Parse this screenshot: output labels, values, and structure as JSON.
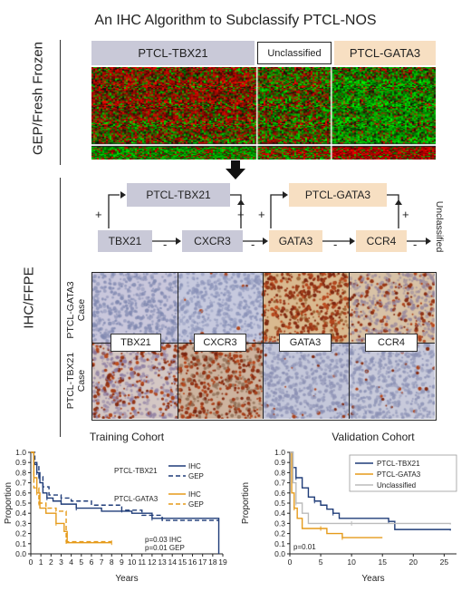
{
  "title": "An IHC Algorithm to Subclassify PTCL-NOS",
  "side_labels": {
    "gep": "GEP/Fresh Frozen",
    "ihc": "IHC/FFPE"
  },
  "heatmap_groups": {
    "tbx21": "PTCL-TBX21",
    "unclassified": "Unclassified",
    "gata3": "PTCL-GATA3"
  },
  "algorithm": {
    "box_tbx21": "PTCL-TBX21",
    "box_gata3": "PTCL-GATA3",
    "markers": [
      "TBX21",
      "CXCR3",
      "GATA3",
      "CCR4"
    ],
    "plus": "+",
    "minus": "-",
    "unclassified": "Unclassified"
  },
  "ihc": {
    "row_gata3": [
      "PTCL-GATA3",
      "Case"
    ],
    "row_tbx21": [
      "PTCL-TBX21",
      "Case"
    ],
    "labels": [
      "TBX21",
      "CXCR3",
      "GATA3",
      "CCR4"
    ]
  },
  "colors": {
    "tbx21_box": "#c9c9d8",
    "gata3_box": "#f7dfc2",
    "line_tbx21": "#1f3c78",
    "line_gata3": "#e59a1a",
    "line_unclassified": "#bbbbbb"
  },
  "chart_data": [
    {
      "type": "line",
      "title": "Training Cohort",
      "xlabel": "Years",
      "ylabel": "Proportion",
      "xlim": [
        0,
        19
      ],
      "ylim": [
        0,
        1.0
      ],
      "xticks": [
        0,
        1,
        2,
        3,
        4,
        5,
        6,
        7,
        8,
        9,
        10,
        11,
        12,
        13,
        14,
        15,
        16,
        17,
        18,
        19
      ],
      "yticks": [
        0.0,
        0.1,
        0.2,
        0.3,
        0.4,
        0.5,
        0.6,
        0.7,
        0.8,
        0.9,
        1.0
      ],
      "legend_groups": [
        "PTCL-TBX21",
        "PTCL-GATA3"
      ],
      "legend_styles": [
        "IHC",
        "GEP"
      ],
      "annotation": [
        "p=0.03 IHC",
        "p=0.01 GEP"
      ],
      "series": [
        {
          "name": "PTCL-TBX21 IHC",
          "color": "#1f3c78",
          "dash": false,
          "points": [
            [
              0,
              1.0
            ],
            [
              0.3,
              0.9
            ],
            [
              0.6,
              0.8
            ],
            [
              0.9,
              0.7
            ],
            [
              1.2,
              0.6
            ],
            [
              1.6,
              0.55
            ],
            [
              2.2,
              0.52
            ],
            [
              3,
              0.49
            ],
            [
              4.5,
              0.45
            ],
            [
              7,
              0.42
            ],
            [
              10,
              0.4
            ],
            [
              12,
              0.35
            ],
            [
              18.6,
              0.3
            ],
            [
              18.6,
              0.0
            ]
          ]
        },
        {
          "name": "PTCL-TBX21 GEP",
          "color": "#1f3c78",
          "dash": true,
          "points": [
            [
              0,
              1.0
            ],
            [
              0.4,
              0.88
            ],
            [
              0.8,
              0.76
            ],
            [
              1.2,
              0.66
            ],
            [
              1.8,
              0.58
            ],
            [
              3,
              0.55
            ],
            [
              4,
              0.52
            ],
            [
              6,
              0.48
            ],
            [
              9,
              0.43
            ],
            [
              11,
              0.38
            ],
            [
              13,
              0.33
            ],
            [
              18.6,
              0.33
            ]
          ]
        },
        {
          "name": "PTCL-GATA3 IHC",
          "color": "#e59a1a",
          "dash": false,
          "points": [
            [
              0,
              1.0
            ],
            [
              0.3,
              0.75
            ],
            [
              0.6,
              0.6
            ],
            [
              0.9,
              0.45
            ],
            [
              1.5,
              0.4
            ],
            [
              2.5,
              0.3
            ],
            [
              3.3,
              0.22
            ],
            [
              3.6,
              0.11
            ],
            [
              8,
              0.11
            ]
          ]
        },
        {
          "name": "PTCL-GATA3 GEP",
          "color": "#e59a1a",
          "dash": true,
          "points": [
            [
              0,
              1.0
            ],
            [
              0.3,
              0.65
            ],
            [
              0.8,
              0.5
            ],
            [
              1.5,
              0.45
            ],
            [
              2.5,
              0.42
            ],
            [
              3.5,
              0.12
            ],
            [
              8,
              0.12
            ]
          ]
        }
      ]
    },
    {
      "type": "line",
      "title": "Validation Cohort",
      "xlabel": "Years",
      "ylabel": "Proportion",
      "xlim": [
        0,
        27
      ],
      "ylim": [
        0,
        1.0
      ],
      "xticks": [
        0,
        5,
        10,
        15,
        20,
        25
      ],
      "yticks": [
        0.0,
        0.1,
        0.2,
        0.3,
        0.4,
        0.5,
        0.6,
        0.7,
        0.8,
        0.9,
        1.0
      ],
      "legend": [
        "PTCL-TBX21",
        "PTCL-GATA3",
        "Unclassified"
      ],
      "annotation": [
        "p=0.01"
      ],
      "series": [
        {
          "name": "PTCL-TBX21",
          "color": "#1f3c78",
          "dash": false,
          "points": [
            [
              0,
              1.0
            ],
            [
              0.5,
              0.85
            ],
            [
              1,
              0.75
            ],
            [
              2,
              0.65
            ],
            [
              3,
              0.56
            ],
            [
              4,
              0.52
            ],
            [
              5,
              0.48
            ],
            [
              6,
              0.44
            ],
            [
              7,
              0.4
            ],
            [
              8,
              0.35
            ],
            [
              10,
              0.35
            ],
            [
              16,
              0.32
            ],
            [
              17,
              0.24
            ],
            [
              26,
              0.23
            ]
          ]
        },
        {
          "name": "PTCL-GATA3",
          "color": "#e59a1a",
          "dash": false,
          "points": [
            [
              0,
              1.0
            ],
            [
              0.3,
              0.6
            ],
            [
              0.7,
              0.45
            ],
            [
              1.2,
              0.35
            ],
            [
              2,
              0.25
            ],
            [
              5,
              0.25
            ],
            [
              6,
              0.2
            ],
            [
              8,
              0.2
            ],
            [
              8.5,
              0.16
            ],
            [
              15,
              0.16
            ]
          ]
        },
        {
          "name": "Unclassified",
          "color": "#bbbbbb",
          "dash": false,
          "points": [
            [
              0,
              1.0
            ],
            [
              0.5,
              0.7
            ],
            [
              1,
              0.5
            ],
            [
              2,
              0.4
            ],
            [
              3,
              0.3
            ],
            [
              10,
              0.3
            ],
            [
              26,
              0.29
            ]
          ]
        }
      ]
    }
  ]
}
